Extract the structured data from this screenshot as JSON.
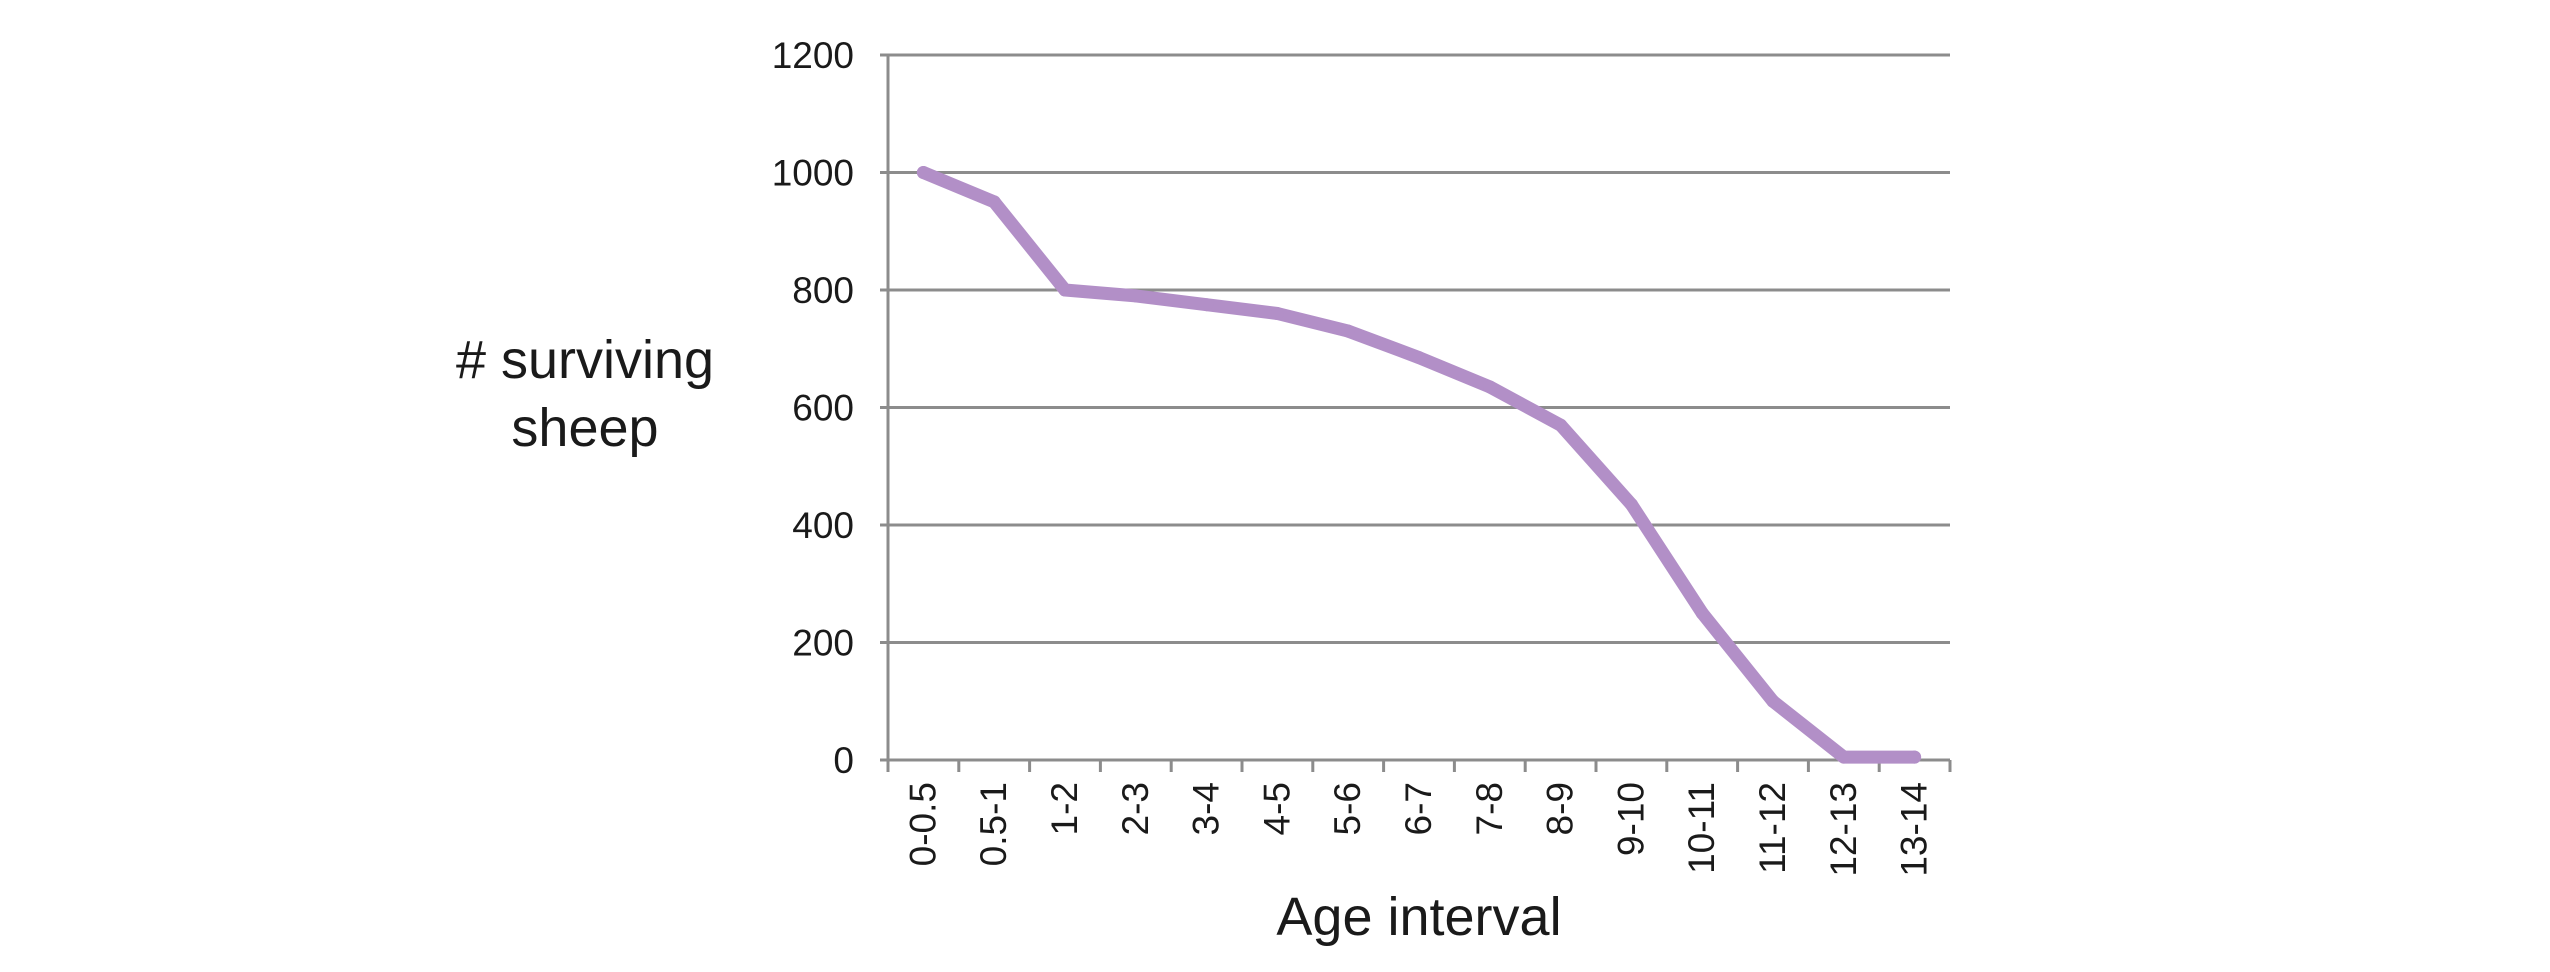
{
  "chart_data": {
    "type": "line",
    "title": "",
    "xlabel": "Age interval",
    "ylabel_lines": [
      "# surviving",
      "sheep"
    ],
    "categories": [
      "0-0.5",
      "0.5-1",
      "1-2",
      "2-3",
      "3-4",
      "4-5",
      "5-6",
      "6-7",
      "7-8",
      "8-9",
      "9-10",
      "10-11",
      "11-12",
      "12-13",
      "13-14"
    ],
    "series": [
      {
        "values": [
          1000,
          950,
          800,
          790,
          775,
          760,
          730,
          685,
          635,
          570,
          435,
          250,
          100,
          5,
          5
        ],
        "color": "#b28fc7"
      }
    ],
    "ylim": [
      0,
      1200
    ],
    "yticks": [
      "0",
      "200",
      "400",
      "600",
      "800",
      "1000",
      "1200"
    ],
    "grid": true,
    "legend": "none",
    "colors": {
      "grid": "#8c8c8c",
      "axis": "#8c8c8c",
      "text": "#1a1a1a"
    }
  }
}
